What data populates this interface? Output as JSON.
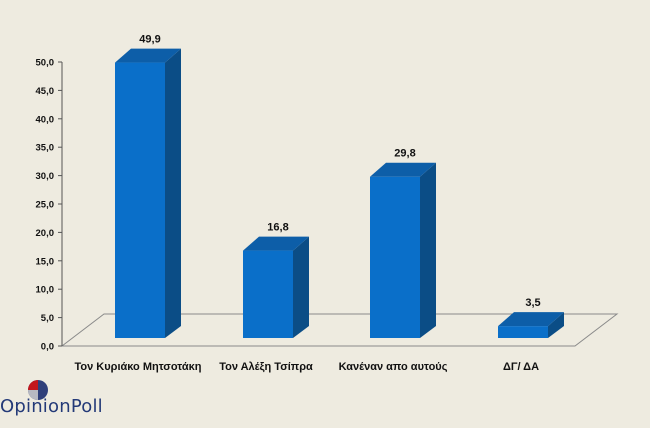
{
  "chart_data": {
    "type": "bar",
    "categories": [
      "Τον Κυριάκο Μητσοτάκη",
      "Τον Αλέξη Τσίπρα",
      "Κανέναν απο αυτούς",
      "ΔΓ/ ΔΑ"
    ],
    "values": [
      49.9,
      16.8,
      29.8,
      3.5
    ],
    "data_labels": [
      "49,9",
      "16,8",
      "29,8",
      "3,5"
    ],
    "ylim": [
      0,
      50
    ],
    "yticks": [
      "0,0",
      "5,0",
      "10,0",
      "15,0",
      "20,0",
      "25,0",
      "30,0",
      "35,0",
      "40,0",
      "45,0",
      "50,0"
    ],
    "bar_style": "3d",
    "colors": {
      "front": "#0a6fc9",
      "side": "#0b4d86",
      "top": "#0d5ea8"
    }
  },
  "logo": {
    "text": "OpinionPoll",
    "icon": "opinionpoll-circle-logo"
  }
}
